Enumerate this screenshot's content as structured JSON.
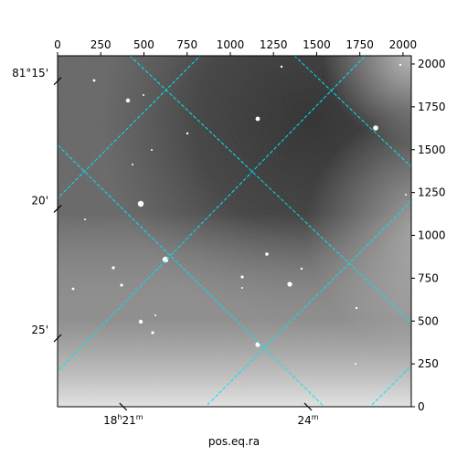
{
  "chart_data": {
    "type": "image",
    "title": "",
    "xlabel": "pos.eq.ra",
    "ylabel": "",
    "pixel_axes": {
      "x_range": [
        0,
        2048
      ],
      "y_range": [
        0,
        2048
      ],
      "x_ticks": [
        0,
        250,
        500,
        750,
        1000,
        1250,
        1500,
        1750,
        2000
      ],
      "y_ticks": [
        0,
        250,
        500,
        750,
        1000,
        1250,
        1500,
        1750,
        2000
      ]
    },
    "world_axes": {
      "ra_tick_labels": [
        {
          "label": "18h21m",
          "base": "18",
          "h": "h",
          "min": "21",
          "m": "m",
          "at": [
            380,
            0
          ]
        },
        {
          "label": "24m",
          "base": "24",
          "m": "m",
          "at": [
            1450,
            0
          ]
        }
      ],
      "dec_tick_labels": [
        {
          "label": "81°15'",
          "at": [
            0,
            1900
          ]
        },
        {
          "label": "20'",
          "at": [
            0,
            1155
          ]
        },
        {
          "label": "25'",
          "at": [
            0,
            400
          ]
        }
      ]
    },
    "grid": {
      "visible": true,
      "color": "#00e5ee",
      "style": "dashed"
    },
    "colormap": "gray"
  }
}
